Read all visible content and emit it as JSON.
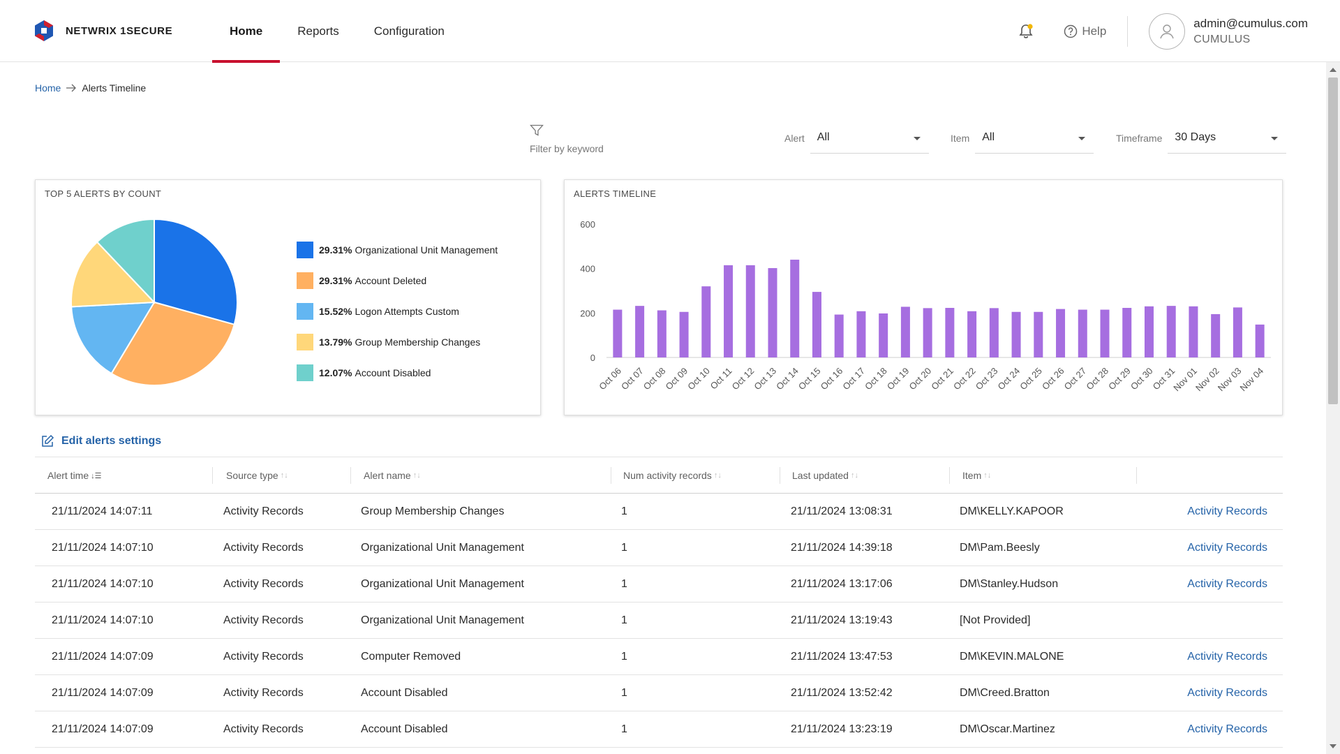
{
  "header": {
    "brand": "NETWRIX 1SECURE",
    "nav": [
      {
        "label": "Home",
        "active": true
      },
      {
        "label": "Reports",
        "active": false
      },
      {
        "label": "Configuration",
        "active": false
      }
    ],
    "help_label": "Help",
    "user_email": "admin@cumulus.com",
    "user_org": "CUMULUS"
  },
  "breadcrumb": {
    "home": "Home",
    "current": "Alerts Timeline"
  },
  "filters": {
    "keyword_label": "Filter by keyword",
    "alert_label": "Alert",
    "alert_value": "All",
    "item_label": "Item",
    "item_value": "All",
    "timeframe_label": "Timeframe",
    "timeframe_value": "30 Days"
  },
  "pie_card": {
    "title": "TOP 5 ALERTS BY COUNT",
    "legend": [
      {
        "pct": "29.31%",
        "label": "Organizational Unit Management"
      },
      {
        "pct": "29.31%",
        "label": "Account Deleted"
      },
      {
        "pct": "15.52%",
        "label": "Logon Attempts Custom"
      },
      {
        "pct": "13.79%",
        "label": "Group Membership Changes"
      },
      {
        "pct": "12.07%",
        "label": "Account Disabled"
      }
    ]
  },
  "timeline_card": {
    "title": "ALERTS TIMELINE"
  },
  "chart_data": [
    {
      "type": "pie",
      "title": "TOP 5 ALERTS BY COUNT",
      "slices": [
        {
          "label": "Organizational Unit Management",
          "value": 29.31,
          "color": "#1a73e8"
        },
        {
          "label": "Account Deleted",
          "value": 29.31,
          "color": "#ffb061"
        },
        {
          "label": "Logon Attempts Custom",
          "value": 15.52,
          "color": "#63b6f2"
        },
        {
          "label": "Group Membership Changes",
          "value": 13.79,
          "color": "#ffd77a"
        },
        {
          "label": "Account Disabled",
          "value": 12.07,
          "color": "#6fd0cc"
        }
      ]
    },
    {
      "type": "bar",
      "title": "ALERTS TIMELINE",
      "color": "#a66ee0",
      "ylim": [
        0,
        600
      ],
      "yticks": [
        0,
        200,
        400,
        600
      ],
      "categories": [
        "Oct 06",
        "Oct 07",
        "Oct 08",
        "Oct 09",
        "Oct 10",
        "Oct 11",
        "Oct 12",
        "Oct 13",
        "Oct 14",
        "Oct 15",
        "Oct 16",
        "Oct 17",
        "Oct 18",
        "Oct 19",
        "Oct 20",
        "Oct 21",
        "Oct 22",
        "Oct 23",
        "Oct 24",
        "Oct 25",
        "Oct 26",
        "Oct 27",
        "Oct 28",
        "Oct 29",
        "Oct 30",
        "Oct 31",
        "Nov 01",
        "Nov 02",
        "Nov 03",
        "Nov 04"
      ],
      "values": [
        215,
        232,
        212,
        205,
        320,
        415,
        415,
        402,
        440,
        295,
        193,
        208,
        198,
        228,
        222,
        223,
        208,
        222,
        205,
        205,
        218,
        215,
        215,
        223,
        230,
        232,
        230,
        195,
        225,
        148
      ]
    }
  ],
  "edit_settings_label": "Edit alerts settings",
  "table": {
    "columns": [
      "Alert time",
      "Source type",
      "Alert name",
      "Num activity records",
      "Last updated",
      "Item"
    ],
    "rows": [
      {
        "time": "21/11/2024 14:07:11",
        "source": "Activity Records",
        "name": "Group Membership Changes",
        "num": "1",
        "updated": "21/11/2024 13:08:31",
        "item": "DM\\KELLY.KAPOOR",
        "link": "Activity Records"
      },
      {
        "time": "21/11/2024 14:07:10",
        "source": "Activity Records",
        "name": "Organizational Unit Management",
        "num": "1",
        "updated": "21/11/2024 14:39:18",
        "item": "DM\\Pam.Beesly",
        "link": "Activity Records"
      },
      {
        "time": "21/11/2024 14:07:10",
        "source": "Activity Records",
        "name": "Organizational Unit Management",
        "num": "1",
        "updated": "21/11/2024 13:17:06",
        "item": "DM\\Stanley.Hudson",
        "link": "Activity Records"
      },
      {
        "time": "21/11/2024 14:07:10",
        "source": "Activity Records",
        "name": "Organizational Unit Management",
        "num": "1",
        "updated": "21/11/2024 13:19:43",
        "item": "[Not Provided]",
        "link": ""
      },
      {
        "time": "21/11/2024 14:07:09",
        "source": "Activity Records",
        "name": "Computer Removed",
        "num": "1",
        "updated": "21/11/2024 13:47:53",
        "item": "DM\\KEVIN.MALONE",
        "link": "Activity Records"
      },
      {
        "time": "21/11/2024 14:07:09",
        "source": "Activity Records",
        "name": "Account Disabled",
        "num": "1",
        "updated": "21/11/2024 13:52:42",
        "item": "DM\\Creed.Bratton",
        "link": "Activity Records"
      },
      {
        "time": "21/11/2024 14:07:09",
        "source": "Activity Records",
        "name": "Account Disabled",
        "num": "1",
        "updated": "21/11/2024 13:23:19",
        "item": "DM\\Oscar.Martinez",
        "link": "Activity Records"
      }
    ]
  }
}
